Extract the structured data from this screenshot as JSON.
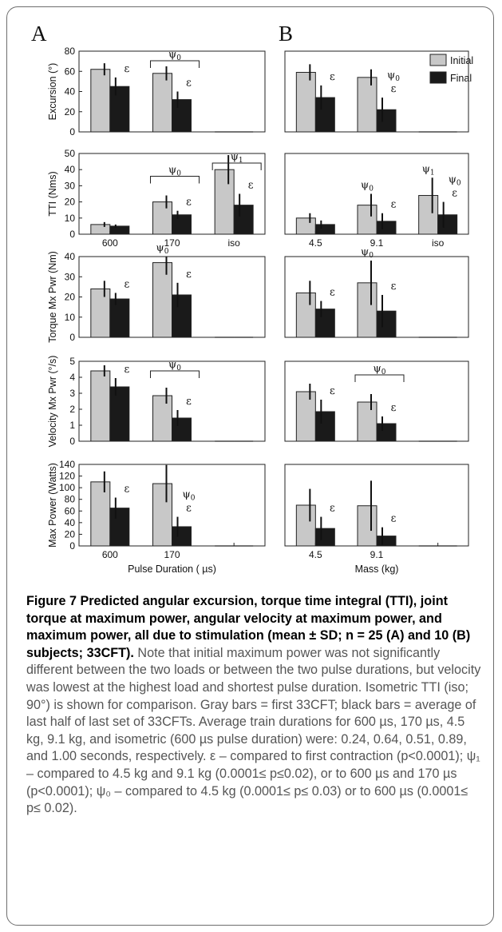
{
  "panel_letters": [
    "A",
    "B"
  ],
  "legend": {
    "items": [
      {
        "label": "Initial",
        "color": "#c8c8c8"
      },
      {
        "label": "Final",
        "color": "#1a1a1a"
      }
    ]
  },
  "colors": {
    "initial": "#c8c8c8",
    "final": "#1a1a1a"
  },
  "caption": {
    "bold": "Figure 7 Predicted angular excursion, torque time integral (TTI), joint torque at maximum power, angular velocity at maximum power, and maximum power, all due to stimulation (mean ± SD; n = 25 (A) and 10 (B) subjects; 33CFT).",
    "body": " Note that initial maximum power was not significantly different between the two loads or between the two pulse durations, but velocity was lowest at the highest load and shortest pulse duration. Isometric TTI (iso; 90°) is shown for comparison. Gray bars = first 33CFT; black bars = average of last half of last set of 33CFTs. Average train durations for 600 µs, 170 µs, 4.5 kg, 9.1 kg, and isometric (600 µs pulse duration) were: 0.24, 0.64, 0.51, 0.89, and 1.00 seconds, respectively. ε – compared to first contraction (p<0.0001); ψ₁ – compared to 4.5 kg and 9.1 kg (0.0001≤ p≤0.02), or to 600 µs and 170 µs (p<0.0001); ψ₀ – compared to 4.5 kg (0.0001≤ p≤ 0.03) or to 600 µs (0.0001≤ p≤ 0.02)."
  },
  "chart_data": [
    {
      "type": "bar",
      "panel": "A",
      "row": 0,
      "ylabel": "Excursion (°)",
      "ylim": [
        0,
        80
      ],
      "yticks": [
        0,
        20,
        40,
        60,
        80
      ],
      "categories": [
        "600",
        "170",
        "iso"
      ],
      "show_xticks": false,
      "series": [
        {
          "name": "Initial",
          "values": [
            62,
            58,
            0
          ],
          "sd": [
            6,
            7,
            0
          ]
        },
        {
          "name": "Final",
          "values": [
            45,
            32,
            0
          ],
          "sd": [
            9,
            8,
            0
          ]
        }
      ],
      "annotations": [
        {
          "group": 0,
          "series": 1,
          "text": "ε"
        },
        {
          "group": 1,
          "series": 1,
          "text": "ε"
        }
      ],
      "brackets": [
        {
          "group": 1,
          "symbol": "ψ",
          "sub": "0"
        }
      ]
    },
    {
      "type": "bar",
      "panel": "A",
      "row": 1,
      "ylabel": "TTI (Nms)",
      "ylim": [
        0,
        50
      ],
      "yticks": [
        0,
        10,
        20,
        30,
        40,
        50
      ],
      "categories": [
        "600",
        "170",
        "iso"
      ],
      "show_xticks": true,
      "series": [
        {
          "name": "Initial",
          "values": [
            6,
            20,
            40
          ],
          "sd": [
            1.5,
            4,
            9
          ]
        },
        {
          "name": "Final",
          "values": [
            5,
            12,
            18
          ],
          "sd": [
            1,
            2.5,
            7
          ]
        }
      ],
      "annotations": [
        {
          "group": 1,
          "series": 1,
          "text": "ε"
        },
        {
          "group": 2,
          "series": 1,
          "text": "ε"
        }
      ],
      "brackets": [
        {
          "group": 1,
          "symbol": "ψ",
          "sub": "0"
        },
        {
          "group": 2,
          "symbol": "ψ",
          "sub": "1"
        }
      ]
    },
    {
      "type": "bar",
      "panel": "A",
      "row": 2,
      "ylabel": "Torque Mx Pwr (Nm)",
      "ylim": [
        0,
        40
      ],
      "yticks": [
        0,
        10,
        20,
        30,
        40
      ],
      "categories": [
        "600",
        "170",
        "iso"
      ],
      "show_xticks": false,
      "series": [
        {
          "name": "Initial",
          "values": [
            24,
            37,
            0
          ],
          "sd": [
            4,
            6,
            0
          ]
        },
        {
          "name": "Final",
          "values": [
            19,
            21,
            0
          ],
          "sd": [
            3,
            6,
            0
          ]
        }
      ],
      "annotations": [
        {
          "group": 0,
          "series": 1,
          "text": "ε"
        },
        {
          "group": 1,
          "series": 1,
          "text": "ε"
        },
        {
          "group": 1,
          "series": 0,
          "text": "ψ",
          "sub": "0"
        }
      ],
      "brackets": []
    },
    {
      "type": "bar",
      "panel": "A",
      "row": 3,
      "ylabel": "Velocity Mx Pwr (°/s)",
      "ylim": [
        0,
        5
      ],
      "yticks": [
        0,
        1,
        2,
        3,
        4,
        5
      ],
      "categories": [
        "600",
        "170",
        "iso"
      ],
      "show_xticks": false,
      "series": [
        {
          "name": "Initial",
          "values": [
            4.4,
            2.85,
            0
          ],
          "sd": [
            0.35,
            0.5,
            0
          ]
        },
        {
          "name": "Final",
          "values": [
            3.4,
            1.45,
            0
          ],
          "sd": [
            0.55,
            0.5,
            0
          ]
        }
      ],
      "annotations": [
        {
          "group": 0,
          "series": 1,
          "text": "ε"
        },
        {
          "group": 1,
          "series": 1,
          "text": "ε"
        }
      ],
      "brackets": [
        {
          "group": 1,
          "symbol": "ψ",
          "sub": "0"
        }
      ]
    },
    {
      "type": "bar",
      "panel": "A",
      "row": 4,
      "ylabel": "Max Power (Watts)",
      "ylim": [
        0,
        140
      ],
      "yticks": [
        0,
        20,
        40,
        60,
        80,
        100,
        120,
        140
      ],
      "categories": [
        "600",
        "170",
        "iso"
      ],
      "show_xticks": true,
      "xlabel": "Pulse Duration ( µs)",
      "series": [
        {
          "name": "Initial",
          "values": [
            110,
            107,
            0
          ],
          "sd": [
            18,
            32,
            0
          ]
        },
        {
          "name": "Final",
          "values": [
            65,
            33,
            0
          ],
          "sd": [
            18,
            17,
            0
          ]
        }
      ],
      "annotations": [
        {
          "group": 0,
          "series": 1,
          "text": "ε"
        },
        {
          "group": 1,
          "series": 1,
          "text": "ε"
        },
        {
          "group": 1,
          "series": 1,
          "text": "ψ",
          "sub": "0",
          "level": 2
        }
      ],
      "brackets": []
    },
    {
      "type": "bar",
      "panel": "B",
      "row": 0,
      "ylim": [
        0,
        80
      ],
      "categories": [
        "4.5",
        "9.1",
        "iso"
      ],
      "show_xticks": false,
      "series": [
        {
          "name": "Initial",
          "values": [
            59,
            54,
            0
          ],
          "sd": [
            8,
            8,
            0
          ]
        },
        {
          "name": "Final",
          "values": [
            34,
            22,
            0
          ],
          "sd": [
            12,
            12,
            0
          ]
        }
      ],
      "annotations": [
        {
          "group": 0,
          "series": 1,
          "text": "ε"
        },
        {
          "group": 1,
          "series": 1,
          "text": "ε"
        },
        {
          "group": 1,
          "series": 1,
          "text": "ψ",
          "sub": "0",
          "level": 2
        }
      ],
      "brackets": []
    },
    {
      "type": "bar",
      "panel": "B",
      "row": 1,
      "ylim": [
        0,
        50
      ],
      "categories": [
        "4.5",
        "9.1",
        "iso"
      ],
      "show_xticks": true,
      "series": [
        {
          "name": "Initial",
          "values": [
            10,
            18,
            24
          ],
          "sd": [
            3,
            7,
            11
          ]
        },
        {
          "name": "Final",
          "values": [
            6,
            8,
            12
          ],
          "sd": [
            2.5,
            5,
            8
          ]
        }
      ],
      "annotations": [
        {
          "group": 1,
          "series": 1,
          "text": "ε"
        },
        {
          "group": 2,
          "series": 1,
          "text": "ε"
        },
        {
          "group": 1,
          "series": 0,
          "text": "ψ",
          "sub": "0"
        },
        {
          "group": 2,
          "series": 1,
          "text": "ψ",
          "sub": "0",
          "level": 2
        },
        {
          "group": 2,
          "series": 0,
          "text": "ψ",
          "sub": "1"
        }
      ],
      "brackets": []
    },
    {
      "type": "bar",
      "panel": "B",
      "row": 2,
      "ylim": [
        0,
        40
      ],
      "categories": [
        "4.5",
        "9.1",
        "iso"
      ],
      "show_xticks": false,
      "series": [
        {
          "name": "Initial",
          "values": [
            22,
            27,
            0
          ],
          "sd": [
            6,
            11,
            0
          ]
        },
        {
          "name": "Final",
          "values": [
            14,
            13,
            0
          ],
          "sd": [
            4,
            8,
            0
          ]
        }
      ],
      "annotations": [
        {
          "group": 0,
          "series": 1,
          "text": "ε"
        },
        {
          "group": 1,
          "series": 1,
          "text": "ε"
        },
        {
          "group": 1,
          "series": 0,
          "text": "ψ",
          "sub": "0"
        }
      ],
      "brackets": []
    },
    {
      "type": "bar",
      "panel": "B",
      "row": 3,
      "ylim": [
        0,
        5
      ],
      "categories": [
        "4.5",
        "9.1",
        "iso"
      ],
      "show_xticks": false,
      "series": [
        {
          "name": "Initial",
          "values": [
            3.1,
            2.45,
            0
          ],
          "sd": [
            0.5,
            0.5,
            0
          ]
        },
        {
          "name": "Final",
          "values": [
            1.85,
            1.1,
            0
          ],
          "sd": [
            0.75,
            0.45,
            0
          ]
        }
      ],
      "annotations": [
        {
          "group": 0,
          "series": 1,
          "text": "ε"
        },
        {
          "group": 1,
          "series": 1,
          "text": "ε"
        }
      ],
      "brackets": [
        {
          "group": 1,
          "symbol": "ψ",
          "sub": "0"
        }
      ]
    },
    {
      "type": "bar",
      "panel": "B",
      "row": 4,
      "ylim": [
        0,
        140
      ],
      "categories": [
        "4.5",
        "9.1",
        "iso"
      ],
      "show_xticks": true,
      "xlabel": "Mass (kg)",
      "series": [
        {
          "name": "Initial",
          "values": [
            70,
            69,
            0
          ],
          "sd": [
            28,
            43,
            0
          ]
        },
        {
          "name": "Final",
          "values": [
            30,
            17,
            0
          ],
          "sd": [
            20,
            15,
            0
          ]
        }
      ],
      "annotations": [
        {
          "group": 0,
          "series": 1,
          "text": "ε"
        },
        {
          "group": 1,
          "series": 1,
          "text": "ε"
        }
      ],
      "brackets": []
    }
  ]
}
